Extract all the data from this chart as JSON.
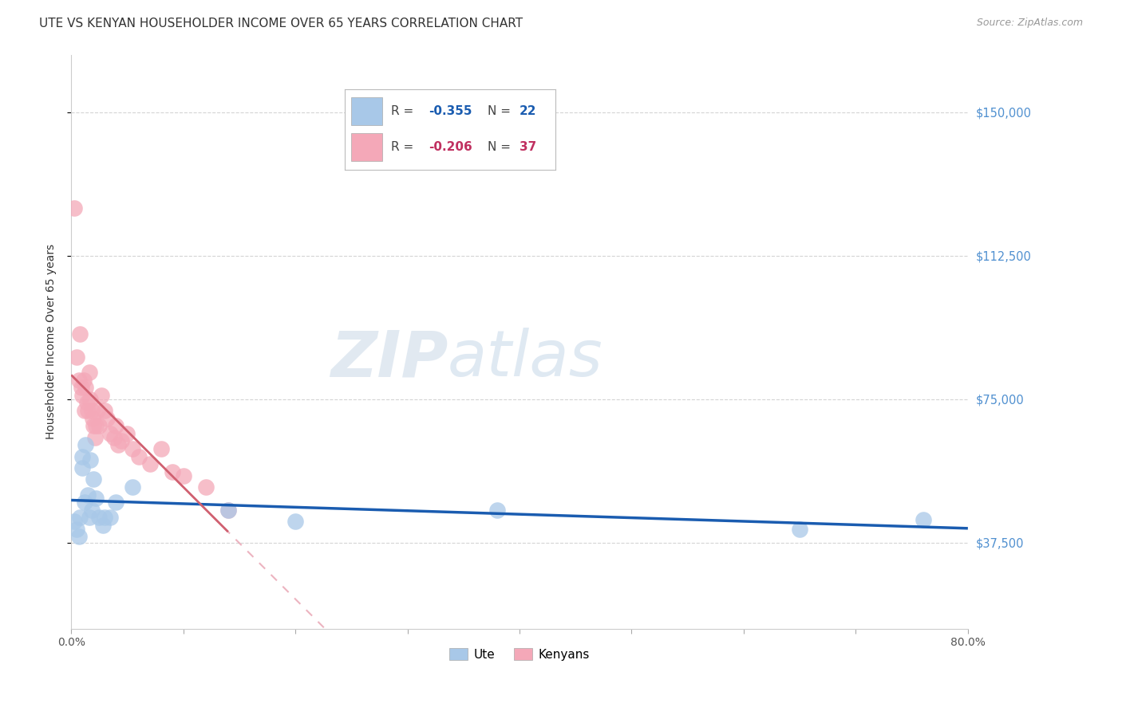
{
  "title": "UTE VS KENYAN HOUSEHOLDER INCOME OVER 65 YEARS CORRELATION CHART",
  "source": "Source: ZipAtlas.com",
  "ylabel": "Householder Income Over 65 years",
  "watermark_zip": "ZIP",
  "watermark_atlas": "atlas",
  "xlim": [
    0.0,
    0.8
  ],
  "ylim": [
    15000,
    165000
  ],
  "yticks": [
    37500,
    75000,
    112500,
    150000
  ],
  "ytick_labels": [
    "$37,500",
    "$75,000",
    "$112,500",
    "$150,000"
  ],
  "xticks": [
    0.0,
    0.1,
    0.2,
    0.3,
    0.4,
    0.5,
    0.6,
    0.7,
    0.8
  ],
  "xtick_labels": [
    "0.0%",
    "",
    "",
    "",
    "",
    "",
    "",
    "",
    "80.0%"
  ],
  "ute_color": "#a8c8e8",
  "kenyan_color": "#f4a8b8",
  "ute_line_color": "#1a5cb0",
  "kenyan_line_color": "#e8a0b0",
  "background_color": "#ffffff",
  "grid_color": "#d0d0d0",
  "title_fontsize": 11,
  "tick_label_color_y": "#5090d0",
  "ute_x": [
    0.003,
    0.005,
    0.007,
    0.008,
    0.01,
    0.01,
    0.012,
    0.013,
    0.015,
    0.016,
    0.017,
    0.018,
    0.02,
    0.022,
    0.025,
    0.028,
    0.03,
    0.035,
    0.04,
    0.055,
    0.14,
    0.2,
    0.38,
    0.65,
    0.76
  ],
  "ute_y": [
    43000,
    41000,
    39000,
    44000,
    57000,
    60000,
    48000,
    63000,
    50000,
    44000,
    59000,
    46000,
    54000,
    49000,
    44000,
    42000,
    44000,
    44000,
    48000,
    52000,
    46000,
    43000,
    46000,
    41000,
    43500
  ],
  "kenyan_x": [
    0.003,
    0.005,
    0.007,
    0.008,
    0.009,
    0.01,
    0.011,
    0.012,
    0.013,
    0.014,
    0.015,
    0.016,
    0.017,
    0.018,
    0.019,
    0.02,
    0.021,
    0.022,
    0.023,
    0.025,
    0.027,
    0.03,
    0.032,
    0.035,
    0.038,
    0.04,
    0.042,
    0.045,
    0.05,
    0.055,
    0.06,
    0.07,
    0.08,
    0.09,
    0.1,
    0.12,
    0.14
  ],
  "kenyan_y": [
    125000,
    86000,
    80000,
    92000,
    78000,
    76000,
    80000,
    72000,
    78000,
    74000,
    72000,
    82000,
    75000,
    72000,
    70000,
    68000,
    65000,
    68000,
    72000,
    68000,
    76000,
    72000,
    70000,
    66000,
    65000,
    68000,
    63000,
    64000,
    66000,
    62000,
    60000,
    58000,
    62000,
    56000,
    55000,
    52000,
    46000
  ]
}
